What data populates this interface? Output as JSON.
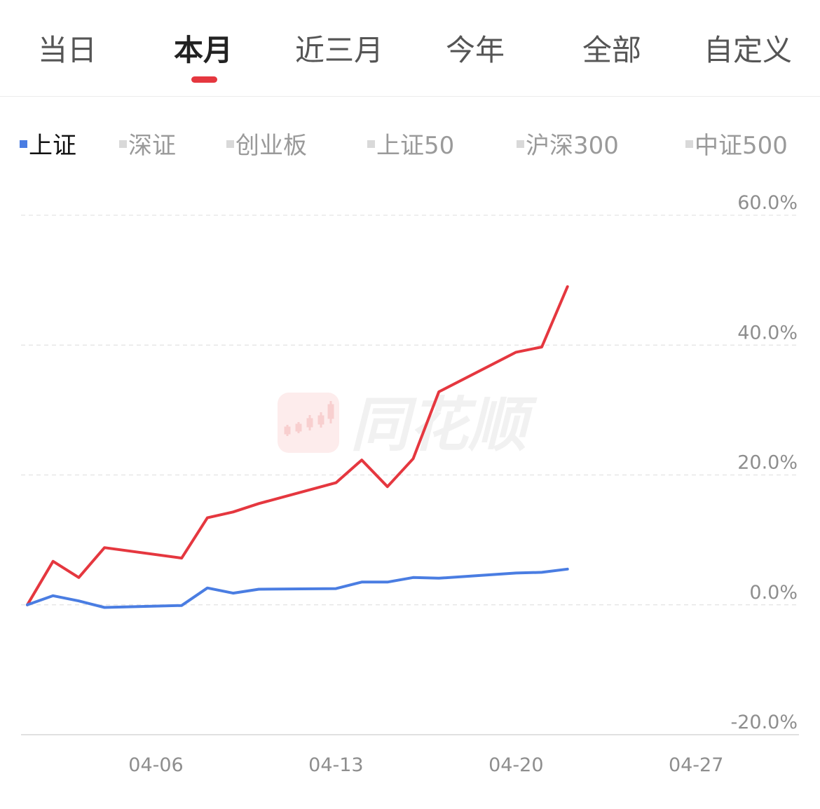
{
  "tabs": [
    "当日",
    "本月",
    "近三月",
    "今年",
    "全部",
    "自定义"
  ],
  "active_tab": 1,
  "indices": [
    "上证",
    "深证",
    "创业板",
    "上证50",
    "沪深300",
    "中证500"
  ],
  "active_index": 0,
  "watermark": "同花顺",
  "colors": {
    "accent": "#e5373f",
    "primary_series": "#e5373f",
    "benchmark_series": "#4a7de2",
    "inactive_marker": "#d9d9d9"
  },
  "chart_data": {
    "type": "line",
    "x": [
      "04-01",
      "04-02",
      "04-03",
      "04-04",
      "04-07",
      "04-08",
      "04-09",
      "04-10",
      "04-13",
      "04-14",
      "04-15",
      "04-16",
      "04-17",
      "04-20",
      "04-21",
      "04-22"
    ],
    "x_ticks": [
      "04-06",
      "04-13",
      "04-20",
      "04-27"
    ],
    "y_ticks": [
      "60.0%",
      "40.0%",
      "20.0%",
      "0.0%",
      "-20.0%"
    ],
    "ylim": [
      -20,
      60
    ],
    "y_unit": "%",
    "grid": true,
    "legend": "top",
    "series": [
      {
        "values": [
          0,
          6.7,
          4.2,
          8.8,
          7.2,
          13.4,
          14.3,
          15.6,
          18.8,
          22.3,
          18.2,
          22.5,
          32.8,
          38.9,
          39.7,
          49.0
        ]
      },
      {
        "values": [
          0,
          1.4,
          0.6,
          -0.4,
          -0.1,
          2.6,
          1.8,
          2.4,
          2.5,
          3.5,
          3.5,
          4.2,
          4.1,
          4.9,
          5.0,
          5.5
        ]
      }
    ]
  }
}
